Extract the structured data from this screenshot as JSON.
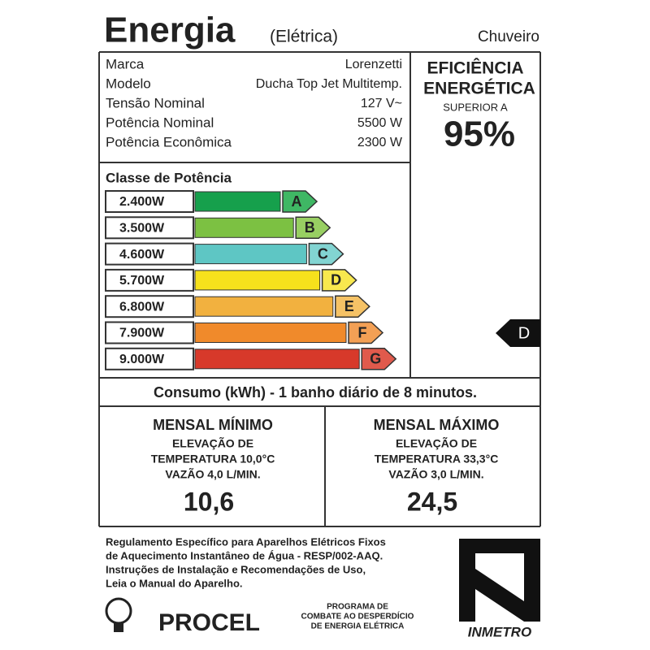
{
  "header": {
    "title": "Energia",
    "subtitle": "(Elétrica)",
    "product": "Chuveiro"
  },
  "specs": {
    "rows": [
      [
        "Marca",
        "Lorenzetti"
      ],
      [
        "Modelo",
        "Ducha Top Jet Multitemp."
      ],
      [
        "Tensão Nominal",
        "127 V~"
      ],
      [
        "Potência Nominal",
        "5500 W"
      ],
      [
        "Potência Econômica",
        "2300 W"
      ]
    ]
  },
  "efficiency": {
    "line1": "EFICIÊNCIA",
    "line2": "ENERGÉTICA",
    "caption": "SUPERIOR A",
    "value": "95%"
  },
  "classes": {
    "title": "Classe de Potência",
    "indicator": "D",
    "rows": [
      {
        "power": "2.400W",
        "letter": "A",
        "color": "#16a04c",
        "arrow_color": "#3fb764"
      },
      {
        "power": "3.500W",
        "letter": "B",
        "color": "#7cc142",
        "arrow_color": "#98cf62"
      },
      {
        "power": "4.600W",
        "letter": "C",
        "color": "#5ec6c4",
        "arrow_color": "#82d4d2"
      },
      {
        "power": "5.700W",
        "letter": "D",
        "color": "#f6e11c",
        "arrow_color": "#f8e84e"
      },
      {
        "power": "6.800W",
        "letter": "E",
        "color": "#f2b13f",
        "arrow_color": "#f5c266"
      },
      {
        "power": "7.900W",
        "letter": "F",
        "color": "#f08a2b",
        "arrow_color": "#f3a055"
      },
      {
        "power": "9.000W",
        "letter": "G",
        "color": "#d7392a",
        "arrow_color": "#e05a4c"
      }
    ]
  },
  "consumption": {
    "text": "Consumo (kWh) - 1 banho diário de 8 minutos."
  },
  "monthly": [
    {
      "title": "MENSAL MÍNIMO",
      "lines": [
        "ELEVAÇÃO DE",
        "TEMPERATURA 10,0°C",
        "VAZÃO 4,0 L/MIN."
      ],
      "value": "10,6"
    },
    {
      "title": "MENSAL MÁXIMO",
      "lines": [
        "ELEVAÇÃO DE",
        "TEMPERATURA 33,3°C",
        "VAZÃO 3,0 L/MIN."
      ],
      "value": "24,5"
    }
  ],
  "footer": {
    "regulation": [
      "Regulamento Específico para Aparelhos Elétricos Fixos",
      "de Aquecimento Instantâneo de Água - RESP/002-AAQ.",
      "Instruções de Instalação e Recomendações de Uso,",
      "Leia o Manual do Aparelho."
    ],
    "procel": "PROCEL",
    "program": [
      "PROGRAMA DE",
      "COMBATE AO DESPERDÍCIO",
      "DE ENERGIA ELÉTRICA"
    ],
    "inmetro": "INMETRO"
  }
}
